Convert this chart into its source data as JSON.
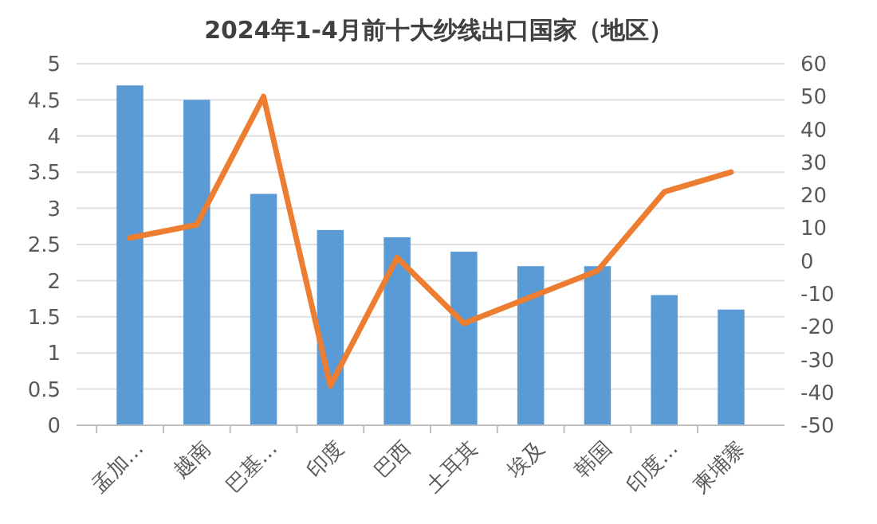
{
  "chart_data": {
    "type": "bar",
    "title": "2024年1-4月前十大纱线出口国家（地区）",
    "categories": [
      "孟加…",
      "越南",
      "巴基…",
      "印度",
      "巴西",
      "土耳其",
      "埃及",
      "韩国",
      "印度…",
      "柬埔寨"
    ],
    "series": [
      {
        "color": "#5b9bd5",
        "values": [
          4.7,
          4.5,
          3.2,
          2.7,
          2.6,
          2.4,
          2.2,
          2.2,
          1.8,
          1.6
        ]
      },
      {
        "type": "line",
        "axis": "y2",
        "color": "#ed7d31",
        "values": [
          7,
          11,
          50,
          -38,
          1,
          -19,
          -11,
          -3,
          21,
          27
        ]
      }
    ],
    "ylim": [
      0,
      5
    ],
    "yticks": [
      0,
      0.5,
      1,
      1.5,
      2,
      2.5,
      3,
      3.5,
      4,
      4.5,
      5
    ],
    "y2lim": [
      -50,
      60
    ],
    "y2ticks": [
      -50,
      -40,
      -30,
      -20,
      -10,
      0,
      10,
      20,
      30,
      40,
      50,
      60
    ],
    "grid": "y",
    "line_style": "solid",
    "marker": "none"
  }
}
